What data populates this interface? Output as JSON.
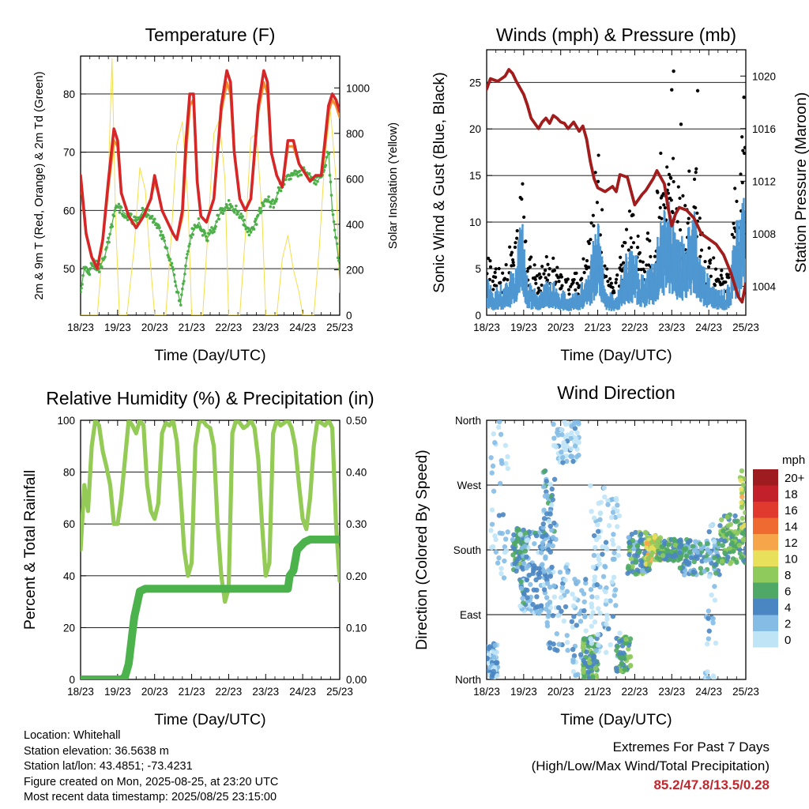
{
  "colors": {
    "temp_2m": "#d62728",
    "temp_9m": "#f28e2b",
    "dewpoint": "#4daf4a",
    "solar": "#f5dd4e",
    "wind": "#4e97d1",
    "gust": "#000000",
    "pressure": "#a11d1d",
    "humidity": "#93cb56",
    "rainfall": "#4cb34c",
    "extremes_text": "#c1272d"
  },
  "chart_data": [
    {
      "id": "temperature",
      "type": "line",
      "title": "Temperature (F)",
      "xlabel": "Time (Day/UTC)",
      "ylabel": "2m & 9m T (Red, Orange) & 2m Td (Green)",
      "y2label": "Solar Insolation (Yellow)",
      "x_ticks": [
        "18/23",
        "19/23",
        "20/23",
        "21/23",
        "22/23",
        "23/23",
        "24/23",
        "25/23"
      ],
      "xlim": [
        0,
        7
      ],
      "ylim": [
        42,
        86.5
      ],
      "y_ticks": [
        50,
        60,
        70,
        80
      ],
      "y2lim": [
        0,
        1140
      ],
      "y2_ticks": [
        0,
        200,
        400,
        600,
        800,
        1000
      ],
      "grid": "horizontal",
      "series": [
        {
          "key": "temp_2m",
          "x": [
            0,
            0.15,
            0.3,
            0.45,
            0.6,
            0.75,
            0.9,
            1.0,
            1.1,
            1.3,
            1.5,
            1.7,
            1.9,
            2.0,
            2.1,
            2.2,
            2.35,
            2.5,
            2.6,
            2.75,
            2.85,
            2.95,
            3.05,
            3.15,
            3.25,
            3.4,
            3.6,
            3.8,
            3.95,
            4.05,
            4.15,
            4.3,
            4.45,
            4.6,
            4.8,
            4.95,
            5.05,
            5.15,
            5.3,
            5.45,
            5.6,
            5.75,
            5.9,
            6.0,
            6.1,
            6.2,
            6.35,
            6.5,
            6.6,
            6.7,
            6.8,
            6.9,
            7.0
          ],
          "values": [
            66,
            56,
            52,
            50,
            55,
            65,
            74,
            72,
            63,
            59,
            57,
            59,
            62,
            66,
            63,
            60,
            58,
            56,
            55,
            60,
            72,
            80,
            80,
            65,
            59,
            58,
            62,
            78,
            84,
            82,
            70,
            62,
            60,
            62,
            78,
            84,
            82,
            70,
            66,
            64,
            72,
            72,
            68,
            67,
            66,
            65,
            66,
            66,
            72,
            78,
            80,
            79,
            77
          ]
        },
        {
          "key": "temp_9m",
          "x": [
            0,
            0.15,
            0.3,
            0.45,
            0.6,
            0.75,
            0.9,
            1.0,
            1.1,
            1.3,
            1.5,
            1.7,
            1.9,
            2.0,
            2.1,
            2.2,
            2.35,
            2.5,
            2.6,
            2.75,
            2.85,
            2.95,
            3.05,
            3.15,
            3.25,
            3.4,
            3.6,
            3.8,
            3.95,
            4.05,
            4.15,
            4.3,
            4.45,
            4.6,
            4.8,
            4.95,
            5.05,
            5.15,
            5.3,
            5.45,
            5.6,
            5.75,
            5.9,
            6.0,
            6.1,
            6.2,
            6.35,
            6.5,
            6.6,
            6.7,
            6.8,
            6.9,
            7.0
          ],
          "values": [
            65,
            56,
            52,
            50,
            55,
            64,
            72,
            71,
            63,
            59,
            57,
            59,
            62,
            65,
            63,
            60,
            58,
            56,
            55,
            59,
            70,
            78,
            79,
            65,
            59,
            58,
            62,
            77,
            82,
            80,
            70,
            62,
            60,
            62,
            77,
            82,
            80,
            70,
            66,
            64,
            71,
            71,
            68,
            67,
            66,
            65,
            66,
            66,
            71,
            77,
            79,
            78,
            76
          ]
        },
        {
          "key": "dewpoint",
          "x": [
            0,
            0.1,
            0.2,
            0.35,
            0.5,
            0.65,
            0.8,
            0.95,
            1.1,
            1.3,
            1.5,
            1.7,
            1.9,
            2.1,
            2.25,
            2.4,
            2.55,
            2.7,
            2.85,
            3.0,
            3.2,
            3.4,
            3.6,
            3.8,
            4.0,
            4.2,
            4.4,
            4.6,
            4.8,
            5.0,
            5.2,
            5.4,
            5.6,
            5.8,
            6.0,
            6.2,
            6.4,
            6.5,
            6.6,
            6.7,
            6.8,
            6.9,
            7.0
          ],
          "values": [
            46,
            50,
            49,
            51,
            50,
            52,
            56,
            61,
            60,
            59,
            58,
            60,
            59,
            57,
            55,
            52,
            48,
            44,
            51,
            56,
            58,
            55,
            57,
            60,
            61,
            60,
            58,
            56,
            59,
            62,
            61,
            64,
            66,
            66,
            67,
            66,
            65,
            66,
            68,
            70,
            60,
            55,
            50
          ]
        },
        {
          "key": "solar",
          "axis": "y2",
          "x": [
            0,
            0.45,
            0.6,
            0.75,
            0.85,
            0.95,
            1.05,
            1.25,
            1.45,
            1.6,
            1.75,
            1.85,
            2.0,
            2.3,
            2.45,
            2.6,
            2.75,
            2.9,
            3.0,
            3.3,
            3.45,
            3.6,
            3.75,
            3.9,
            4.0,
            4.3,
            4.45,
            4.6,
            4.75,
            4.9,
            5.0,
            5.3,
            5.45,
            5.6,
            5.75,
            5.9,
            6.0,
            6.3,
            6.45,
            6.6,
            6.75,
            6.9,
            7.0
          ],
          "values": [
            0,
            0,
            300,
            600,
            1130,
            400,
            0,
            0,
            300,
            650,
            550,
            300,
            0,
            0,
            350,
            750,
            850,
            500,
            0,
            0,
            400,
            800,
            860,
            600,
            0,
            0,
            350,
            780,
            800,
            450,
            0,
            0,
            250,
            350,
            200,
            100,
            0,
            0,
            300,
            700,
            900,
            600,
            100
          ]
        }
      ]
    },
    {
      "id": "winds",
      "type": "scatter",
      "title": "Winds (mph) & Pressure (mb)",
      "xlabel": "Time (Day/UTC)",
      "ylabel": "Sonic Wind & Gust (Blue, Black)",
      "y2label": "Station Pressure (Maroon)",
      "x_ticks": [
        "18/23",
        "19/23",
        "20/23",
        "21/23",
        "22/23",
        "23/23",
        "24/23",
        "25/23"
      ],
      "xlim": [
        0,
        7
      ],
      "ylim": [
        0,
        28.5
      ],
      "y_ticks": [
        0,
        5,
        10,
        15,
        20,
        25
      ],
      "y2lim": [
        1001.8,
        1022
      ],
      "y2_ticks": [
        1004,
        1008,
        1012,
        1016,
        1020
      ],
      "grid": "horizontal",
      "series": [
        {
          "key": "pressure",
          "axis": "y2",
          "x": [
            0,
            0.1,
            0.3,
            0.5,
            0.6,
            0.7,
            0.8,
            1.0,
            1.1,
            1.2,
            1.4,
            1.5,
            1.6,
            1.7,
            1.8,
            1.9,
            2.0,
            2.1,
            2.2,
            2.35,
            2.5,
            2.6,
            2.7,
            2.8,
            2.9,
            3.0,
            3.2,
            3.4,
            3.5,
            3.6,
            3.8,
            4.0,
            4.2,
            4.3,
            4.5,
            4.6,
            4.8,
            4.9,
            5.0,
            5.1,
            5.2,
            5.4,
            5.6,
            5.8,
            6.0,
            6.2,
            6.4,
            6.6,
            6.7,
            6.8,
            6.9,
            7.0
          ],
          "values": [
            1019,
            1019.8,
            1019.6,
            1020,
            1020.5,
            1020.2,
            1019.6,
            1018.6,
            1017.8,
            1016.8,
            1016,
            1016.5,
            1016.8,
            1016.4,
            1017,
            1016.8,
            1016.5,
            1016.4,
            1016.0,
            1016.5,
            1015.8,
            1016.2,
            1015.2,
            1013.5,
            1012.2,
            1011.5,
            1011.2,
            1011.6,
            1011.2,
            1012.5,
            1012.3,
            1010.2,
            1011.0,
            1011.3,
            1012.2,
            1012.8,
            1011.8,
            1010.0,
            1008.6,
            1009.5,
            1010.0,
            1009.8,
            1009.2,
            1008.0,
            1007.6,
            1007.2,
            1006.4,
            1005.0,
            1004.1,
            1003.2,
            1002.8,
            1004.2
          ]
        }
      ]
    },
    {
      "id": "humidity",
      "type": "line",
      "title": "Relative Humidity (%) & Precipitation (in)",
      "xlabel": "Time (Day/UTC)",
      "ylabel": "Percent & Total Rainfall",
      "x_ticks": [
        "18/23",
        "19/23",
        "20/23",
        "21/23",
        "22/23",
        "23/23",
        "24/23",
        "25/23"
      ],
      "xlim": [
        0,
        7
      ],
      "ylim": [
        0,
        100
      ],
      "y_ticks": [
        0,
        20,
        40,
        60,
        80,
        100
      ],
      "y2lim": [
        0,
        0.5
      ],
      "y2_ticks": [
        "0.00",
        "0.10",
        "0.20",
        "0.30",
        "0.40",
        "0.50"
      ],
      "grid": "horizontal",
      "series": [
        {
          "key": "humidity",
          "x": [
            0,
            0.1,
            0.2,
            0.3,
            0.4,
            0.5,
            0.6,
            0.7,
            0.8,
            0.9,
            1.0,
            1.1,
            1.2,
            1.3,
            1.4,
            1.5,
            1.6,
            1.7,
            1.8,
            1.9,
            2.0,
            2.1,
            2.2,
            2.3,
            2.4,
            2.5,
            2.6,
            2.7,
            2.8,
            2.9,
            3.0,
            3.1,
            3.2,
            3.3,
            3.4,
            3.5,
            3.6,
            3.7,
            3.8,
            3.9,
            4.0,
            4.1,
            4.2,
            4.3,
            4.4,
            4.5,
            4.6,
            4.7,
            4.8,
            4.9,
            5.0,
            5.1,
            5.2,
            5.3,
            5.4,
            5.5,
            5.6,
            5.7,
            5.8,
            5.9,
            6.0,
            6.1,
            6.2,
            6.3,
            6.4,
            6.5,
            6.6,
            6.7,
            6.8,
            6.9,
            7.0
          ],
          "values": [
            50,
            75,
            65,
            90,
            100,
            98,
            88,
            82,
            75,
            60,
            60,
            70,
            85,
            100,
            98,
            95,
            100,
            98,
            75,
            65,
            62,
            68,
            95,
            99,
            98,
            100,
            92,
            72,
            50,
            40,
            45,
            90,
            99,
            100,
            98,
            97,
            90,
            60,
            40,
            30,
            35,
            95,
            100,
            99,
            97,
            98,
            100,
            97,
            85,
            60,
            40,
            45,
            95,
            100,
            98,
            99,
            100,
            97,
            90,
            75,
            62,
            58,
            70,
            90,
            100,
            99,
            98,
            100,
            97,
            60,
            38
          ]
        },
        {
          "key": "rainfall",
          "axis": "y2",
          "x": [
            0,
            1.1,
            1.2,
            1.3,
            1.45,
            1.6,
            1.75,
            3.0,
            4.0,
            5.0,
            5.6,
            5.65,
            5.75,
            5.85,
            6.05,
            6.2,
            6.5,
            7.0
          ],
          "values": [
            0,
            0,
            0.005,
            0.03,
            0.12,
            0.17,
            0.175,
            0.175,
            0.175,
            0.175,
            0.175,
            0.2,
            0.21,
            0.25,
            0.265,
            0.27,
            0.27,
            0.27
          ]
        }
      ]
    },
    {
      "id": "wind_direction",
      "type": "scatter",
      "title": "Wind Direction",
      "xlabel": "Time (Day/UTC)",
      "ylabel": "Direction (Colored By Speed)",
      "x_ticks": [
        "18/23",
        "19/23",
        "20/23",
        "21/23",
        "22/23",
        "23/23",
        "24/23",
        "25/23"
      ],
      "xlim": [
        0,
        7
      ],
      "y_ticks": [
        "North",
        "East",
        "South",
        "West",
        "North"
      ],
      "y_tick_values": [
        0,
        90,
        180,
        270,
        360
      ],
      "ylim": [
        0,
        360
      ],
      "grid": "horizontal",
      "legend": {
        "title": "mph",
        "labels": [
          "20+",
          "18",
          "16",
          "14",
          "12",
          "10",
          "8",
          "6",
          "4",
          "2",
          "0"
        ],
        "colors": [
          "#9e1b1f",
          "#c3212a",
          "#e03a2f",
          "#ef6a31",
          "#f7a54a",
          "#e8df5a",
          "#8fca5d",
          "#4fa865",
          "#4a86c2",
          "#85bce6",
          "#bfe4f6"
        ],
        "placement": "right"
      }
    }
  ],
  "info": {
    "location": "Location: Whitehall",
    "elevation": "Station elevation: 36.5638 m",
    "latlon": "Station lat/lon: 43.4851; -73.4231",
    "created": "Figure created on Mon, 2025-08-25, at 23:20 UTC",
    "recent": "Most recent data timestamp: 2025/08/25 23:15:00"
  },
  "extremes": {
    "title": "Extremes For Past 7 Days",
    "subtitle": "(High/Low/Max Wind/Total Precipitation)",
    "values": "85.2/47.8/13.5/0.28"
  }
}
